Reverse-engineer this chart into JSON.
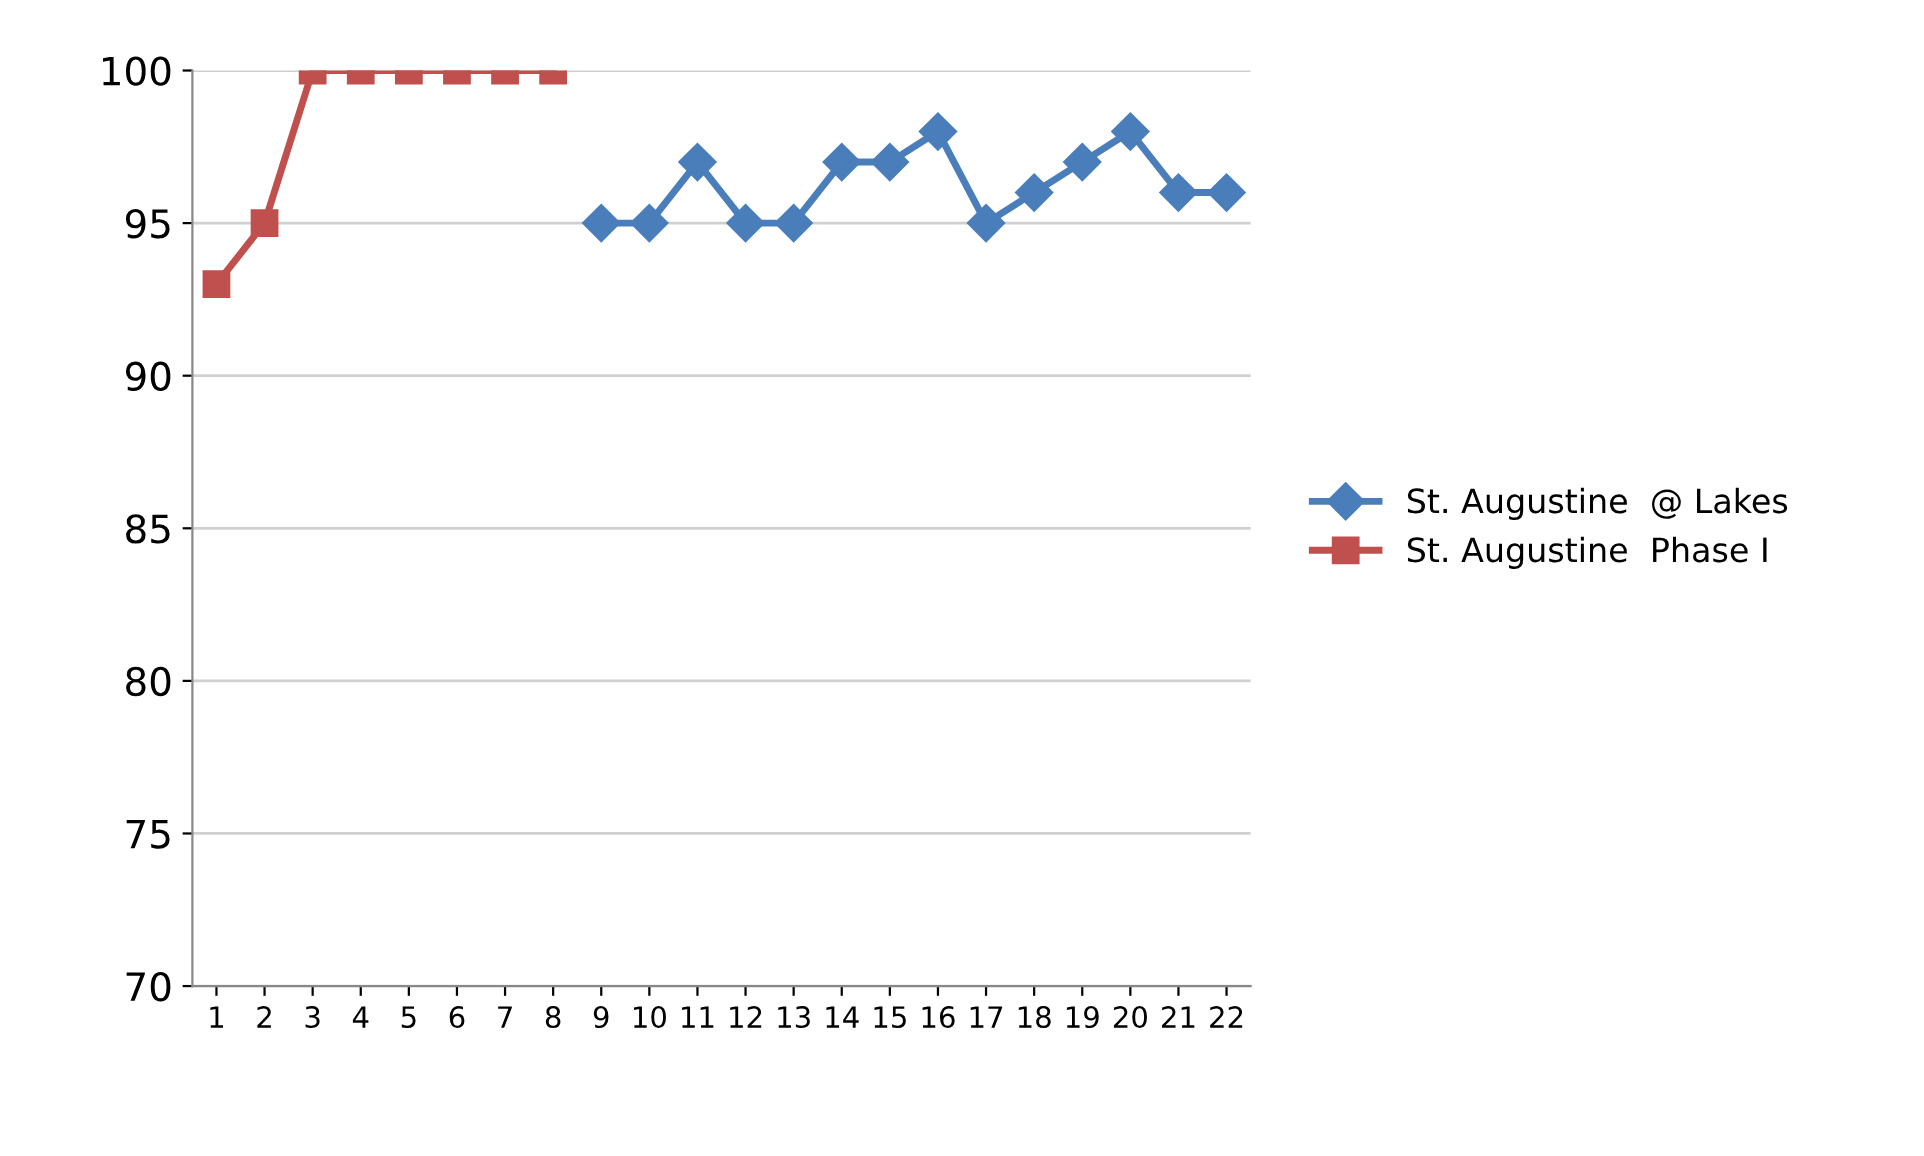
{
  "chart_data": {
    "type": "line",
    "categories": [
      "1",
      "2",
      "3",
      "4",
      "5",
      "6",
      "7",
      "8",
      "9",
      "10",
      "11",
      "12",
      "13",
      "14",
      "15",
      "16",
      "17",
      "18",
      "19",
      "20",
      "21",
      "22"
    ],
    "series": [
      {
        "name": "St. Augustine  @ Lakes",
        "color": "#4a7ebb",
        "marker": "diamond",
        "values": [
          null,
          null,
          null,
          null,
          null,
          null,
          null,
          null,
          95,
          95,
          97,
          95,
          95,
          97,
          97,
          98,
          95,
          96,
          97,
          98,
          96,
          96
        ]
      },
      {
        "name": "St. Augustine  Phase I",
        "color": "#c0504d",
        "marker": "square",
        "values": [
          93,
          95,
          100,
          100,
          100,
          100,
          100,
          100,
          null,
          null,
          null,
          null,
          null,
          null,
          null,
          null,
          null,
          null,
          null,
          null,
          null,
          null
        ]
      }
    ],
    "ylim": [
      70,
      100
    ],
    "yticks": [
      70,
      75,
      80,
      85,
      90,
      95,
      100
    ],
    "grid": "y",
    "legend": "right"
  }
}
